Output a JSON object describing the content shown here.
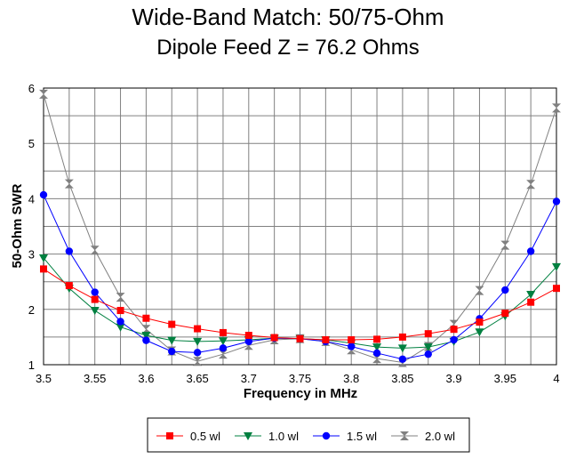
{
  "chart_data": {
    "type": "line",
    "title": "Wide-Band Match:  50/75-Ohm",
    "subtitle": "Dipole Feed Z = 76.2 Ohms",
    "xlabel": "Frequency in MHz",
    "ylabel": "50-Ohm SWR",
    "xlim": [
      3.5,
      4.0
    ],
    "ylim": [
      1,
      6
    ],
    "xticks": [
      "3.5",
      "3.55",
      "3.6",
      "3.65",
      "3.7",
      "3.75",
      "3.8",
      "3.85",
      "3.9",
      "3.95",
      "4"
    ],
    "yticks": [
      "1",
      "2",
      "3",
      "4",
      "5",
      "6"
    ],
    "grid": true,
    "legend_position": "bottom",
    "x": [
      3.5,
      3.525,
      3.55,
      3.575,
      3.6,
      3.625,
      3.65,
      3.675,
      3.7,
      3.725,
      3.75,
      3.775,
      3.8,
      3.825,
      3.85,
      3.875,
      3.9,
      3.925,
      3.95,
      3.975,
      4.0
    ],
    "series": [
      {
        "name": "0.5 wl",
        "color": "#ff0000",
        "marker": "square",
        "values": [
          2.73,
          2.43,
          2.18,
          1.98,
          1.84,
          1.73,
          1.65,
          1.58,
          1.53,
          1.49,
          1.47,
          1.45,
          1.45,
          1.46,
          1.5,
          1.56,
          1.64,
          1.77,
          1.93,
          2.13,
          2.38
        ]
      },
      {
        "name": "1.0 wl",
        "color": "#008040",
        "marker": "triangle-down",
        "values": [
          2.93,
          2.38,
          1.98,
          1.68,
          1.53,
          1.44,
          1.42,
          1.43,
          1.45,
          1.48,
          1.47,
          1.45,
          1.39,
          1.32,
          1.3,
          1.32,
          1.42,
          1.59,
          1.88,
          2.27,
          2.77
        ]
      },
      {
        "name": "1.5 wl",
        "color": "#0000ff",
        "marker": "circle",
        "values": [
          4.07,
          3.05,
          2.31,
          1.78,
          1.44,
          1.24,
          1.22,
          1.3,
          1.42,
          1.48,
          1.47,
          1.42,
          1.33,
          1.21,
          1.1,
          1.19,
          1.45,
          1.83,
          2.35,
          3.05,
          3.95
        ]
      },
      {
        "name": "2.0 wl",
        "color": "#808080",
        "marker": "hourglass",
        "values": [
          5.89,
          4.27,
          3.07,
          2.22,
          1.64,
          1.25,
          1.06,
          1.19,
          1.35,
          1.45,
          1.47,
          1.42,
          1.27,
          1.11,
          1.04,
          1.33,
          1.73,
          2.34,
          3.16,
          4.26,
          5.64
        ]
      }
    ]
  }
}
